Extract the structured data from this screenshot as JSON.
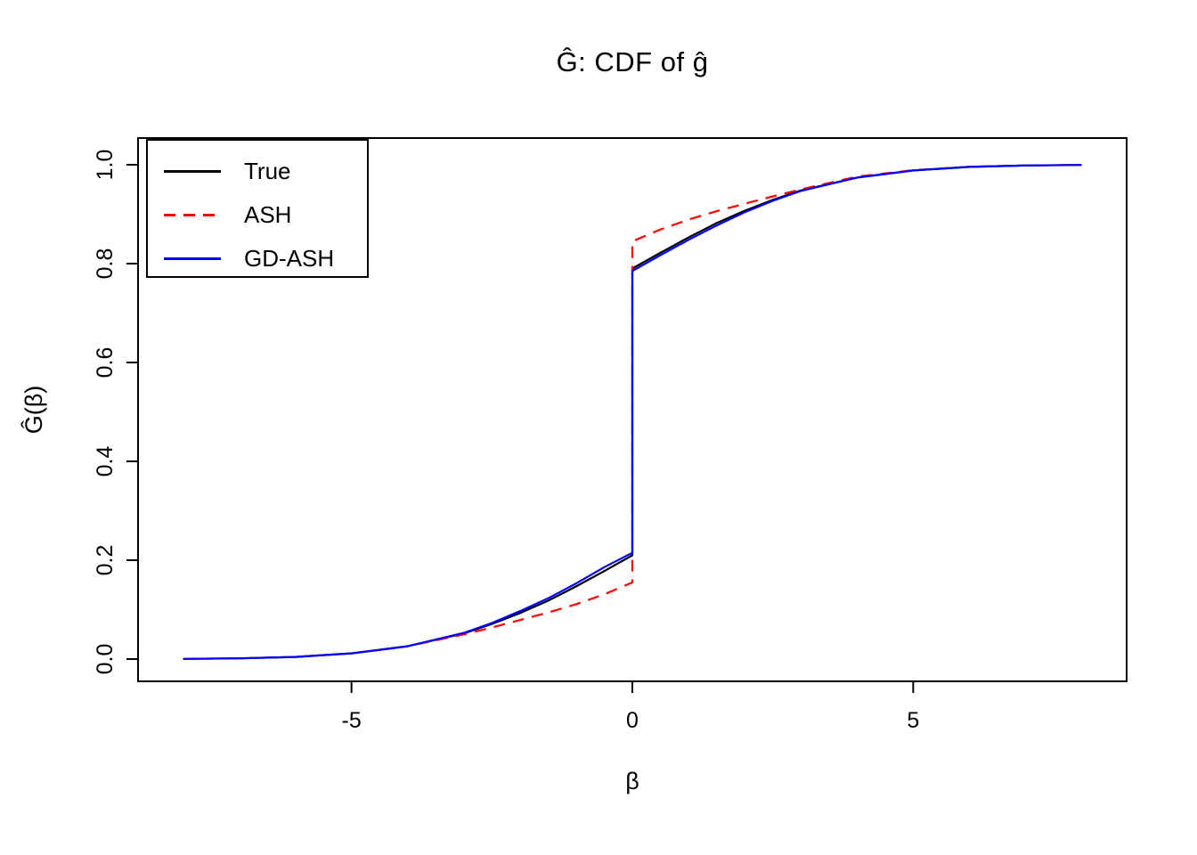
{
  "chart_data": {
    "type": "line",
    "title": "Ĝ: CDF of ĝ",
    "xlabel": "β",
    "ylabel": "Ĝ(β)",
    "xlim": [
      -8.8,
      8.8
    ],
    "ylim": [
      -0.045,
      1.054
    ],
    "x_ticks": [
      -5,
      0,
      5
    ],
    "y_ticks": [
      0.0,
      0.2,
      0.4,
      0.6,
      0.8,
      1.0
    ],
    "grid": false,
    "legend_position": "top-left",
    "x": [
      -8,
      -7,
      -6,
      -5,
      -4,
      -3,
      -2.5,
      -2,
      -1.5,
      -1,
      -0.5,
      0,
      0,
      0.5,
      1,
      1.5,
      2,
      2.5,
      3,
      4,
      5,
      6,
      7,
      8
    ],
    "series": [
      {
        "name": "True",
        "color": "#000000",
        "style": "solid",
        "values": [
          0.0004,
          0.0015,
          0.0044,
          0.0115,
          0.026,
          0.052,
          0.071,
          0.093,
          0.118,
          0.147,
          0.178,
          0.21,
          0.79,
          0.822,
          0.853,
          0.882,
          0.907,
          0.929,
          0.948,
          0.974,
          0.9885,
          0.9956,
          0.9985,
          0.9996
        ]
      },
      {
        "name": "ASH",
        "color": "#FF0000",
        "style": "dashed",
        "values": [
          0.0004,
          0.0015,
          0.0044,
          0.0115,
          0.026,
          0.05,
          0.064,
          0.079,
          0.094,
          0.111,
          0.131,
          0.155,
          0.845,
          0.869,
          0.889,
          0.906,
          0.921,
          0.936,
          0.95,
          0.976,
          0.989,
          0.996,
          0.9985,
          0.9996
        ]
      },
      {
        "name": "GD-ASH",
        "color": "#0000FF",
        "style": "solid",
        "values": [
          0.0004,
          0.0015,
          0.0044,
          0.0115,
          0.026,
          0.053,
          0.073,
          0.097,
          0.123,
          0.153,
          0.186,
          0.215,
          0.785,
          0.817,
          0.848,
          0.877,
          0.904,
          0.927,
          0.947,
          0.974,
          0.9885,
          0.9956,
          0.9985,
          0.9996
        ]
      }
    ]
  }
}
